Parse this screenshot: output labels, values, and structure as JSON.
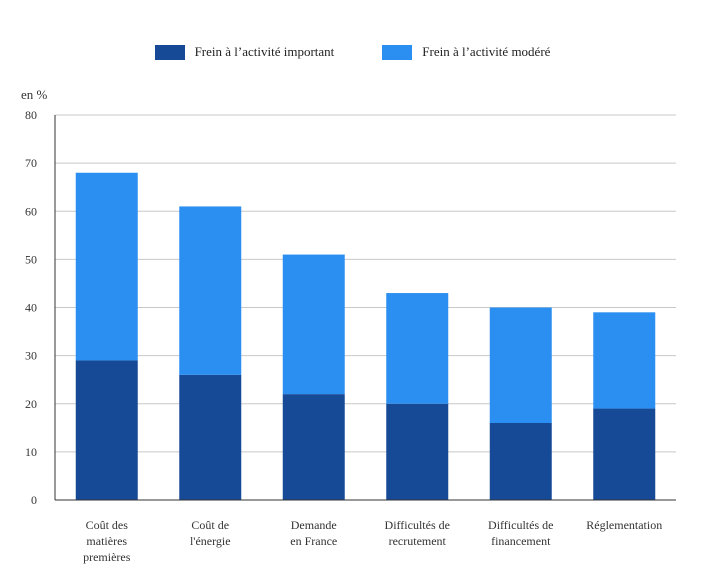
{
  "chart_data": {
    "type": "bar",
    "stacked": true,
    "unit_label": "en %",
    "categories": [
      [
        "Coût des",
        "matières",
        "premières"
      ],
      [
        "Coût de",
        "l'énergie"
      ],
      [
        "Demande",
        "en France"
      ],
      [
        "Difficultés de",
        "recrutement"
      ],
      [
        "Difficultés de",
        "financement"
      ],
      [
        "Réglementation"
      ]
    ],
    "series": [
      {
        "name": "Frein à l’activité important",
        "color": "#174a96",
        "values": [
          29,
          26,
          22,
          20,
          16,
          19
        ]
      },
      {
        "name": "Frein à l’activité modéré",
        "color": "#2a8ff0",
        "values": [
          39,
          35,
          29,
          23,
          24,
          20
        ]
      }
    ],
    "ylim": [
      0,
      80
    ],
    "yticks": [
      0,
      10,
      20,
      30,
      40,
      50,
      60,
      70,
      80
    ],
    "grid": true,
    "legend": "top-center"
  }
}
